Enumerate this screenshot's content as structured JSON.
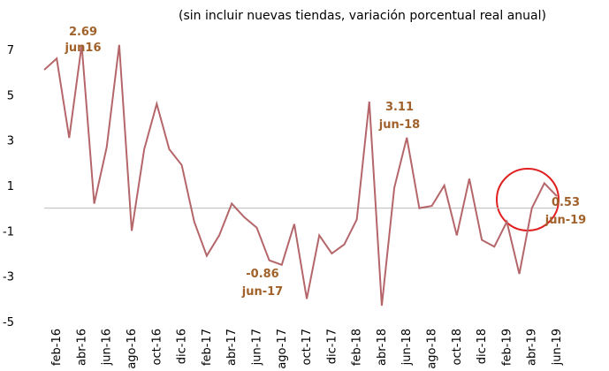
{
  "chart_data": {
    "type": "line",
    "subtitle": "(sin incluir nuevas tiendas, variación porcentual real anual)",
    "categories": [
      null,
      "feb-16",
      null,
      "abr-16",
      null,
      "jun-16",
      null,
      "ago-16",
      null,
      "oct-16",
      null,
      "dic-16",
      null,
      "feb-17",
      null,
      "abr-17",
      null,
      "jun-17",
      null,
      "ago-17",
      null,
      "oct-17",
      null,
      "dic-17",
      null,
      "feb-18",
      null,
      "abr-18",
      null,
      "jun-18",
      null,
      "ago-18",
      null,
      "oct-18",
      null,
      "dic-18",
      null,
      "feb-19",
      null,
      "abr-19",
      null,
      "jun-19"
    ],
    "values": [
      6.1,
      6.6,
      3.1,
      7.2,
      0.2,
      2.69,
      7.2,
      -1.0,
      2.6,
      4.6,
      2.6,
      1.9,
      -0.6,
      -2.1,
      -1.2,
      0.2,
      -0.4,
      -0.86,
      -2.3,
      -2.5,
      -0.7,
      -4.0,
      -1.2,
      -2.0,
      -1.6,
      -0.5,
      4.7,
      -4.3,
      0.9,
      3.11,
      0.0,
      0.1,
      1.0,
      -1.2,
      1.3,
      -1.4,
      -1.7,
      -0.6,
      -2.9,
      0.0,
      1.1,
      0.53
    ],
    "color": "#b5666a",
    "annotations": [
      "jun16",
      "jun-17",
      "jun-18",
      "jun-19"
    ],
    "ylim": [
      -5,
      8
    ],
    "yticks": [
      -5,
      -3,
      -1,
      1,
      3,
      5,
      7
    ]
  }
}
